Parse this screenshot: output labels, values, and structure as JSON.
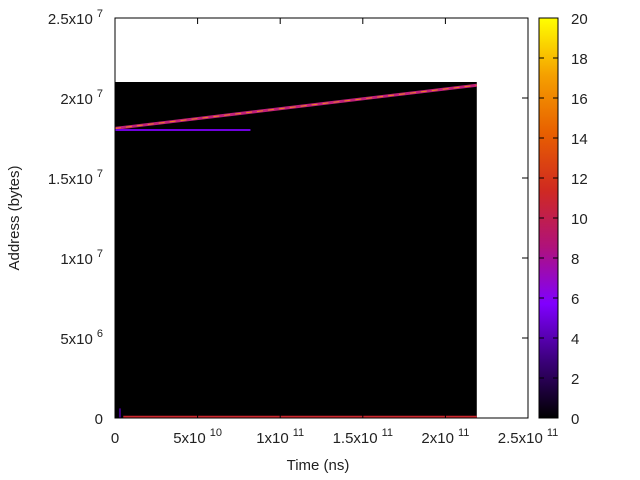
{
  "chart_data": {
    "type": "heatmap",
    "xlabel": "Time (ns)",
    "ylabel": "Address (bytes)",
    "x_range": [
      0,
      250000000000
    ],
    "y_range": [
      0,
      25000000
    ],
    "x_ticks": [
      {
        "value": 0,
        "mantissa": "0",
        "exponent": ""
      },
      {
        "value": 50000000000,
        "mantissa": "5x10",
        "exponent": "10"
      },
      {
        "value": 100000000000,
        "mantissa": "1x10",
        "exponent": "11"
      },
      {
        "value": 150000000000,
        "mantissa": "1.5x10",
        "exponent": "11"
      },
      {
        "value": 200000000000,
        "mantissa": "2x10",
        "exponent": "11"
      },
      {
        "value": 250000000000,
        "mantissa": "2.5x10",
        "exponent": "11"
      }
    ],
    "y_ticks": [
      {
        "value": 0,
        "mantissa": "0",
        "exponent": ""
      },
      {
        "value": 5000000,
        "mantissa": "5x10",
        "exponent": "6"
      },
      {
        "value": 10000000,
        "mantissa": "1x10",
        "exponent": "7"
      },
      {
        "value": 15000000,
        "mantissa": "1.5x10",
        "exponent": "7"
      },
      {
        "value": 20000000,
        "mantissa": "2x10",
        "exponent": "7"
      },
      {
        "value": 25000000,
        "mantissa": "2.5x10",
        "exponent": "7"
      }
    ],
    "heatmap_extent": {
      "x": [
        0,
        219000000000
      ],
      "y": [
        0,
        21000000
      ]
    },
    "colorbar": {
      "range": [
        0,
        20
      ],
      "ticks": [
        0,
        2,
        4,
        6,
        8,
        10,
        12,
        14,
        16,
        18,
        20
      ],
      "palette": [
        "#000000",
        "#3b007a",
        "#8000ff",
        "#b0127a",
        "#d02a20",
        "#e86000",
        "#f5a000",
        "#ffff00"
      ]
    },
    "features": [
      {
        "kind": "diagonal-band",
        "x_start": 0,
        "y_start": 18100000,
        "x_end": 219000000000,
        "y_end": 20800000,
        "value": 10
      },
      {
        "kind": "horizontal-band",
        "x_start": 0,
        "x_end": 82000000000,
        "y": 18000000,
        "value": 5
      },
      {
        "kind": "horizontal-band",
        "x_start": 5000000000,
        "x_end": 219000000000,
        "y": 80000,
        "value": 11
      },
      {
        "kind": "vertical-band",
        "x": 3000000000,
        "y_start": 0,
        "y_end": 600000,
        "value": 3
      }
    ]
  }
}
